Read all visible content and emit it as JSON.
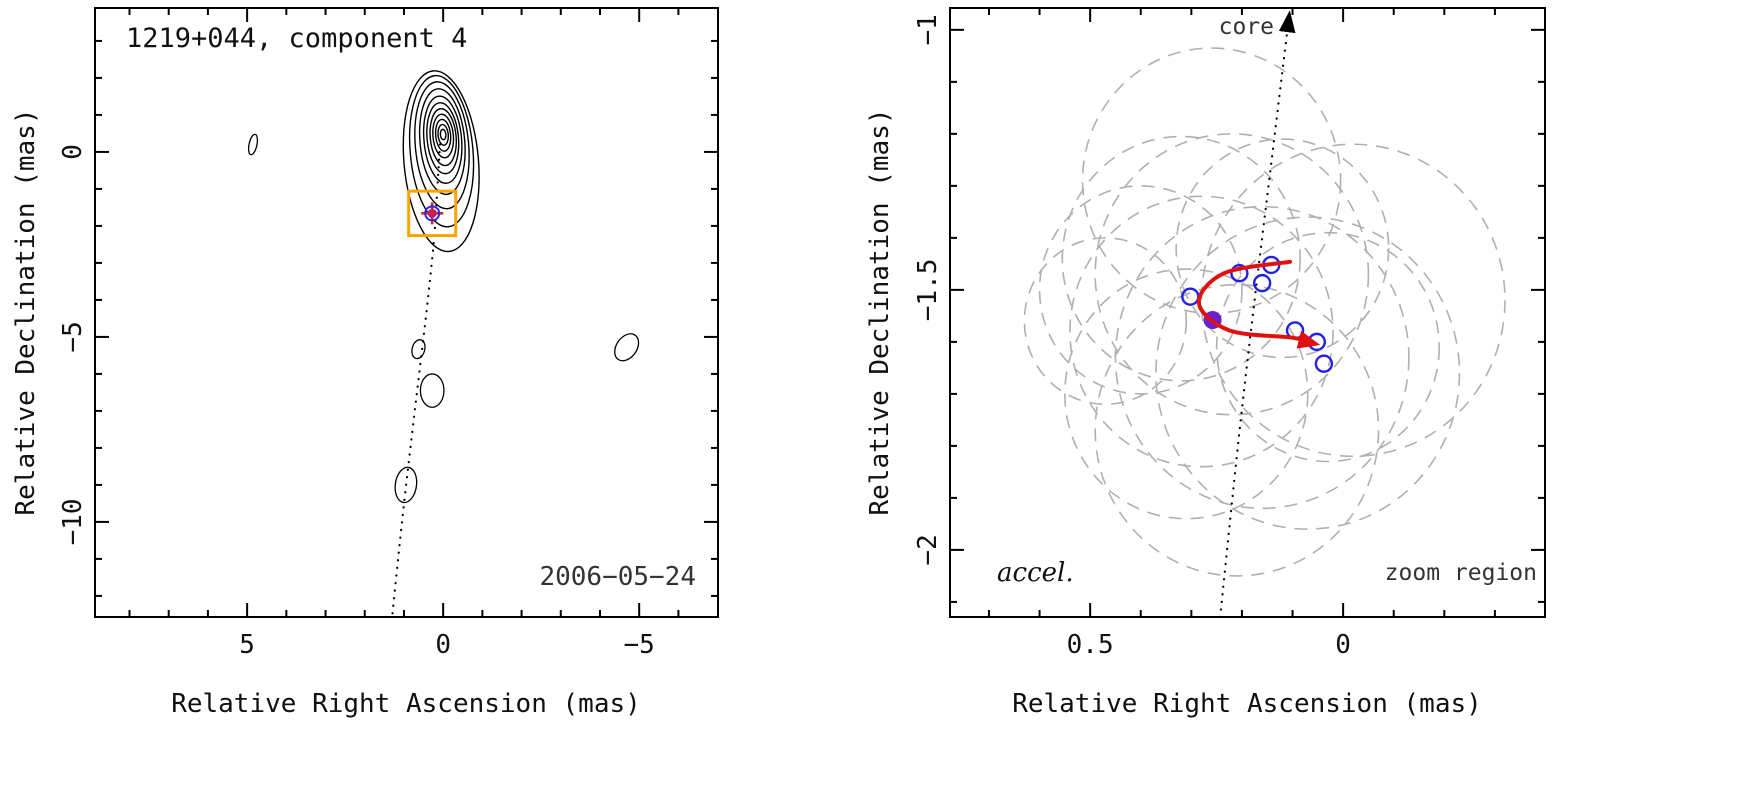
{
  "figure": {
    "background": "#ffffff",
    "frame_color": "#000000"
  },
  "chart_data": [
    {
      "id": "left_contour_map",
      "type": "contour",
      "title": "1219+044, component 4",
      "date_label": "2006−05−24",
      "xlabel": "Relative Right Ascension (mas)",
      "ylabel": "Relative Declination (mas)",
      "xlim": [
        8.88,
        -7.01
      ],
      "ylim": [
        3.89,
        -12.57
      ],
      "xticks": [
        5,
        0,
        -5
      ],
      "yticks": [
        0,
        -5,
        -10
      ],
      "xminor_step": 1,
      "yminor_step": 1,
      "contours_main": {
        "rot": -5,
        "levels": [
          [
            0.05,
            -0.25,
            0.95,
            2.45
          ],
          [
            0.04,
            0.02,
            0.8,
            2.05
          ],
          [
            0.03,
            0.18,
            0.68,
            1.72
          ],
          [
            0.02,
            0.28,
            0.57,
            1.43
          ],
          [
            0.01,
            0.33,
            0.48,
            1.18
          ],
          [
            0.01,
            0.37,
            0.4,
            0.96
          ],
          [
            0.0,
            0.4,
            0.33,
            0.77
          ],
          [
            0.0,
            0.43,
            0.26,
            0.59
          ],
          [
            0.0,
            0.45,
            0.19,
            0.43
          ],
          [
            0.0,
            0.46,
            0.13,
            0.28
          ],
          [
            0.0,
            0.47,
            0.07,
            0.14
          ]
        ]
      },
      "contours_secondary": [
        [
          4.85,
          0.2,
          0.1,
          0.28,
          12
        ],
        [
          -4.68,
          -5.28,
          0.26,
          0.4,
          35
        ],
        [
          0.63,
          -5.33,
          0.16,
          0.26,
          15
        ],
        [
          0.28,
          -6.45,
          0.3,
          0.45,
          0
        ],
        [
          0.95,
          -9.0,
          0.27,
          0.48,
          8
        ]
      ],
      "ridge_line": [
        [
          0.08,
          0.2
        ],
        [
          0.15,
          -1.0
        ],
        [
          0.22,
          -2.2
        ],
        [
          0.35,
          -3.6
        ],
        [
          0.5,
          -5.0
        ],
        [
          0.68,
          -6.6
        ],
        [
          0.88,
          -8.4
        ],
        [
          1.08,
          -10.3
        ],
        [
          1.3,
          -12.55
        ]
      ],
      "component_box": {
        "center": [
          0.28,
          -1.66
        ],
        "half_size_mas": 0.6,
        "color": "#ffa400"
      },
      "component_marker": {
        "center": [
          0.28,
          -1.66
        ],
        "cross_color": "#e02020",
        "circle_color": "#2a2ae0",
        "fill_color": "#7a1fd0"
      }
    },
    {
      "id": "right_zoom_panel",
      "type": "scatter",
      "xlabel": "Relative Right Ascension (mas)",
      "ylabel": "Relative Declination (mas)",
      "xlim": [
        0.777,
        -0.399
      ],
      "ylim": [
        -0.958,
        -2.129
      ],
      "xticks": [
        0.5,
        0
      ],
      "yticks": [
        -1,
        -1.5,
        -2
      ],
      "xminor_step": 0.1,
      "yminor_step": 0.1,
      "core_label": "core",
      "accel_label": "accel.",
      "zoom_label": "zoom region",
      "core_line": [
        [
          0.243,
          -2.129
        ],
        [
          0.208,
          -1.8
        ],
        [
          0.175,
          -1.52
        ],
        [
          0.14,
          -1.24
        ],
        [
          0.107,
          -0.975
        ]
      ],
      "beam_circles": [
        [
          0.26,
          -1.29,
          0.255
        ],
        [
          0.32,
          -1.44,
          0.235
        ],
        [
          0.22,
          -1.47,
          0.27
        ],
        [
          0.4,
          -1.5,
          0.2
        ],
        [
          0.47,
          -1.56,
          0.16
        ],
        [
          0.16,
          -1.63,
          0.29
        ],
        [
          0.07,
          -1.66,
          0.3
        ],
        [
          0.21,
          -1.77,
          0.28
        ],
        [
          0.31,
          -1.7,
          0.24
        ],
        [
          -0.02,
          -1.52,
          0.3
        ],
        [
          0.12,
          -1.42,
          0.21
        ],
        [
          0.03,
          -1.61,
          0.22
        ],
        [
          0.28,
          -1.58,
          0.26
        ]
      ],
      "epochs_open": [
        [
          0.302,
          -1.513
        ],
        [
          0.205,
          -1.468
        ],
        [
          0.16,
          -1.487
        ],
        [
          0.142,
          -1.452
        ],
        [
          0.095,
          -1.578
        ],
        [
          0.052,
          -1.6
        ],
        [
          0.038,
          -1.642
        ]
      ],
      "epoch_filled": [
        0.258,
        -1.558
      ],
      "accel_arrow": [
        [
          0.105,
          -1.446
        ],
        [
          0.235,
          -1.468
        ],
        [
          0.285,
          -1.525
        ],
        [
          0.225,
          -1.578
        ],
        [
          0.1,
          -1.592
        ],
        [
          0.058,
          -1.603
        ]
      ],
      "colors": {
        "open_marker": "#2222e0",
        "filled_marker": "#6a1fd0",
        "arrow": "#e01010",
        "beam": "#b0b0b0"
      }
    }
  ]
}
